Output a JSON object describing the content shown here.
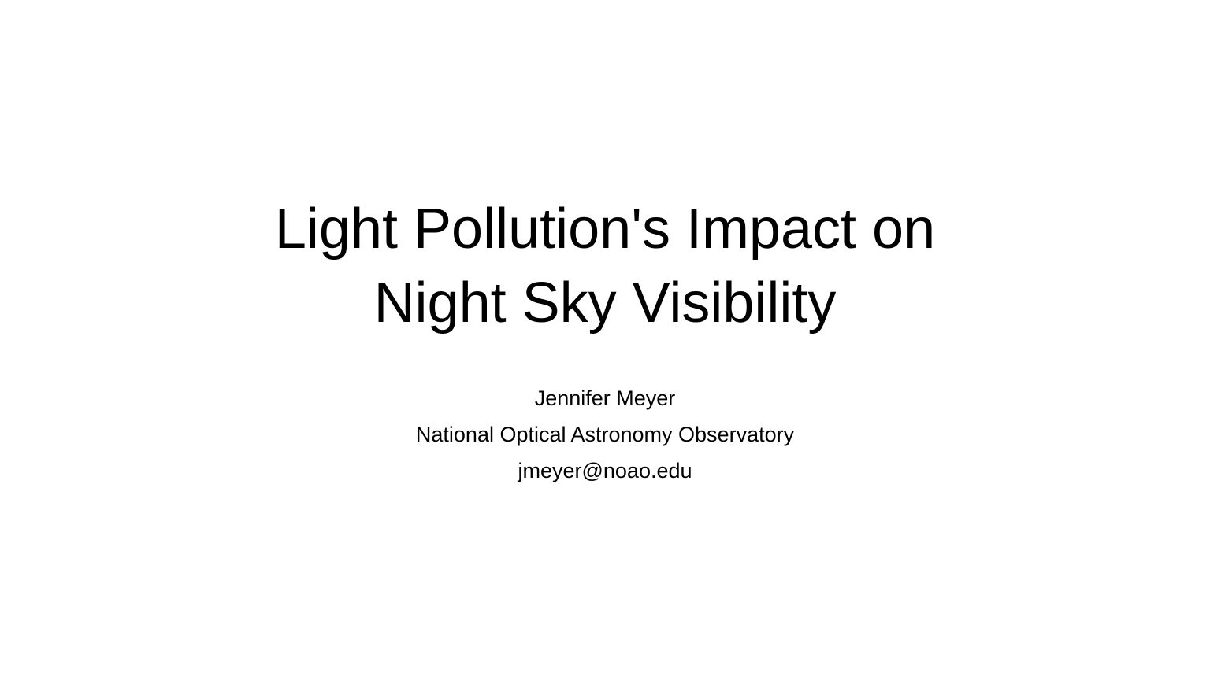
{
  "slide": {
    "title_lines": [
      "Light Pollution's Impact on",
      "Night Sky Visibility"
    ],
    "subtitle_lines": [
      "Jennifer Meyer",
      "National Optical Astronomy Observatory",
      "jmeyer@noao.edu"
    ],
    "colors": {
      "background": "#ffffff",
      "text": "#000000"
    }
  }
}
